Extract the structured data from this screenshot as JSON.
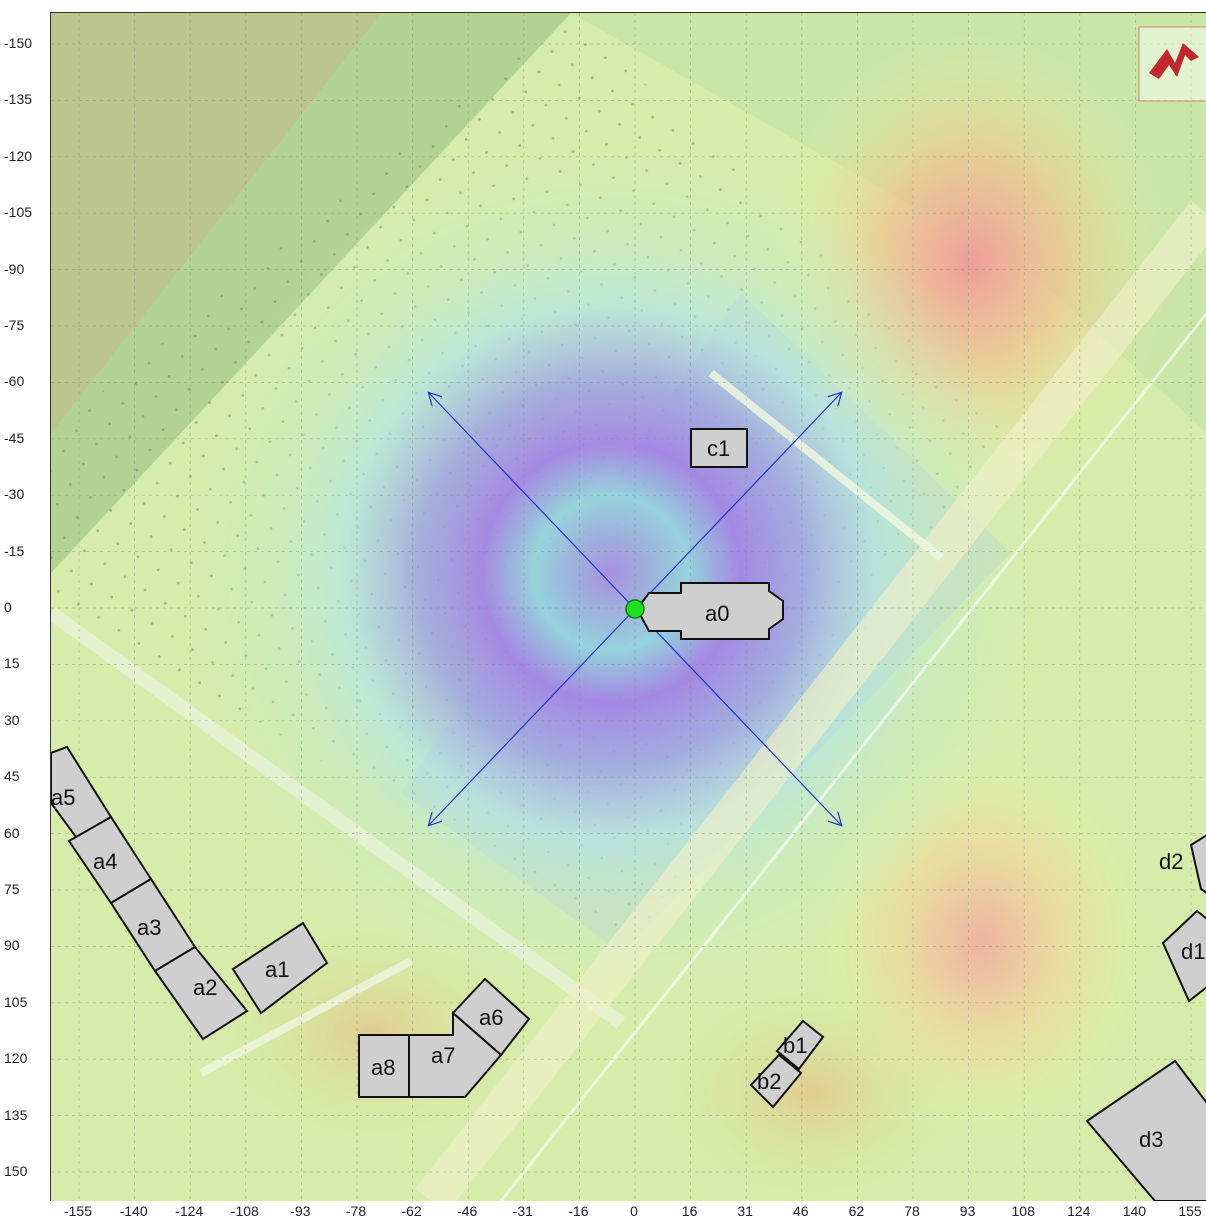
{
  "y_axis_labels": [
    "-150",
    "-135",
    "-120",
    "-105",
    "-90",
    "-75",
    "-60",
    "-45",
    "-30",
    "-15",
    "0",
    "15",
    "30",
    "45",
    "60",
    "75",
    "90",
    "105",
    "120",
    "135",
    "150"
  ],
  "x_axis_labels": [
    "-155",
    "-140",
    "-124",
    "-108",
    "-93",
    "-78",
    "-62",
    "-46",
    "-31",
    "-16",
    "0",
    "16",
    "31",
    "46",
    "62",
    "78",
    "93",
    "108",
    "124",
    "140",
    "155"
  ],
  "buildings": {
    "a0": "a0",
    "c1": "c1",
    "a1": "a1",
    "a2": "a2",
    "a3": "a3",
    "a4": "a4",
    "a5": "a5",
    "a6": "a6",
    "a7": "a7",
    "a8": "a8",
    "b1": "b1",
    "b2": "b2",
    "d1": "d1",
    "d2": "d2",
    "d3": "d3"
  },
  "colors": {
    "accent_marker": "#22dd22",
    "arrow": "#2233cc",
    "building_fill": "#cfcfcf",
    "building_stroke": "#111111",
    "logo": "#c0282d"
  },
  "icons": {
    "source_marker": "green-dot-icon",
    "logo": "logo-icon"
  }
}
